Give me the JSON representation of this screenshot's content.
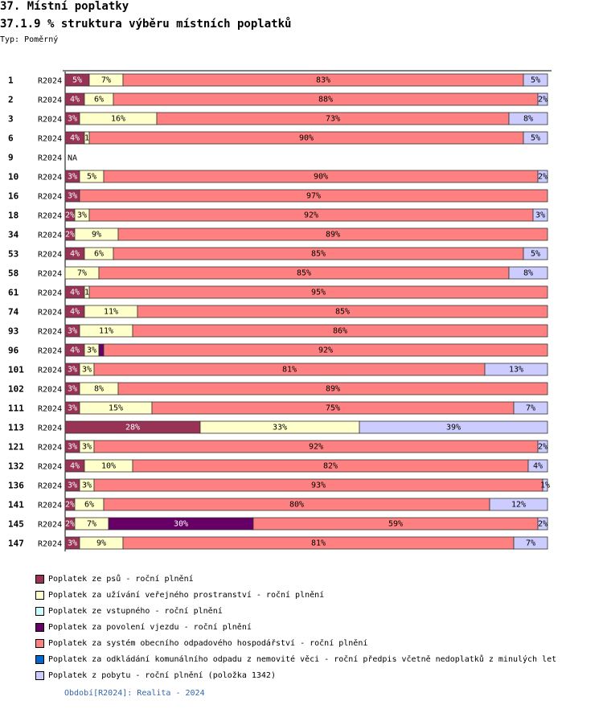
{
  "header": {
    "title": "37. Místní poplatky",
    "subtitle": "37.1.9 % struktura výběru místních poplatků",
    "typ": "Typ: Poměrný"
  },
  "colors": {
    "psu": "#993355",
    "verejne": "#ffffcc",
    "vstupne": "#ccffff",
    "vjezd": "#660066",
    "odpad": "#ff8080",
    "odpad_nemovite": "#0066cc",
    "pobyt": "#ccccff"
  },
  "chart_data": {
    "type": "bar",
    "orientation": "horizontal",
    "stacked": true,
    "normalized": true,
    "period_label": "R2024",
    "series": [
      {
        "key": "psu",
        "name": "Poplatek ze psů - roční plnění"
      },
      {
        "key": "verejne",
        "name": "Poplatek za užívání veřejného prostranství - roční plnění"
      },
      {
        "key": "vstupne",
        "name": "Poplatek ze vstupného - roční plnění"
      },
      {
        "key": "vjezd",
        "name": "Poplatek za povolení vjezdu - roční plnění"
      },
      {
        "key": "odpad",
        "name": "Poplatek za systém obecního odpadového hospodářství - roční plnění"
      },
      {
        "key": "odpad_nemovite",
        "name": "Poplatek za odkládání komunálního odpadu z nemovité věci - roční předpis včetně nedoplatků z minulých let"
      },
      {
        "key": "pobyt",
        "name": "Poplatek z pobytu - roční plnění (položka 1342)"
      }
    ],
    "rows": [
      {
        "id": "1",
        "values": [
          5,
          7,
          0,
          0,
          83,
          0,
          5
        ],
        "labels": [
          "5%",
          "7%",
          "",
          "",
          "83%",
          "",
          "5%"
        ]
      },
      {
        "id": "2",
        "values": [
          4,
          6,
          0,
          0,
          88,
          0,
          2
        ],
        "labels": [
          "4%",
          "6%",
          "",
          "",
          "88%",
          "",
          "2%"
        ]
      },
      {
        "id": "3",
        "values": [
          3,
          16,
          0,
          0,
          73,
          0,
          8
        ],
        "labels": [
          "3%",
          "16%",
          "",
          "",
          "73%",
          "",
          "8%"
        ]
      },
      {
        "id": "6",
        "values": [
          4,
          1,
          0,
          0,
          90,
          0,
          5
        ],
        "labels": [
          "4%",
          "1",
          "",
          "",
          "90%",
          "",
          "5%"
        ]
      },
      {
        "id": "9",
        "values": null,
        "na": "NA"
      },
      {
        "id": "10",
        "values": [
          3,
          5,
          0,
          0,
          90,
          0,
          2
        ],
        "labels": [
          "3%",
          "5%",
          "",
          "",
          "90%",
          "",
          "2%"
        ]
      },
      {
        "id": "16",
        "values": [
          3,
          0,
          0,
          0,
          97,
          0,
          0
        ],
        "labels": [
          "3%",
          "",
          "",
          "",
          "97%",
          "",
          ""
        ]
      },
      {
        "id": "18",
        "values": [
          2,
          3,
          0,
          0,
          92,
          0,
          3
        ],
        "labels": [
          "2%",
          "3%",
          "",
          "",
          "92%",
          "",
          "3%"
        ]
      },
      {
        "id": "34",
        "values": [
          2,
          9,
          0,
          0,
          89,
          0,
          0
        ],
        "labels": [
          "2%",
          "9%",
          "",
          "",
          "89%",
          "",
          ""
        ]
      },
      {
        "id": "53",
        "values": [
          4,
          6,
          0,
          0,
          85,
          0,
          5
        ],
        "labels": [
          "4%",
          "6%",
          "",
          "",
          "85%",
          "",
          "5%"
        ]
      },
      {
        "id": "58",
        "values": [
          0,
          7,
          0,
          0,
          85,
          0,
          8
        ],
        "labels": [
          "",
          "7%",
          "",
          "",
          "85%",
          "",
          "8%"
        ]
      },
      {
        "id": "61",
        "values": [
          4,
          1,
          0,
          0,
          95,
          0,
          0
        ],
        "labels": [
          "4%",
          "1",
          "",
          "",
          "95%",
          "",
          ""
        ]
      },
      {
        "id": "74",
        "values": [
          4,
          11,
          0,
          0,
          85,
          0,
          0
        ],
        "labels": [
          "4%",
          "11%",
          "",
          "",
          "85%",
          "",
          ""
        ]
      },
      {
        "id": "93",
        "values": [
          3,
          11,
          0,
          0,
          86,
          0,
          0
        ],
        "labels": [
          "3%",
          "11%",
          "",
          "",
          "86%",
          "",
          ""
        ]
      },
      {
        "id": "96",
        "values": [
          4,
          3,
          0,
          1,
          92,
          0,
          0
        ],
        "labels": [
          "4%",
          "3%",
          "",
          "",
          "92%",
          "",
          ""
        ]
      },
      {
        "id": "101",
        "values": [
          3,
          3,
          0,
          0,
          81,
          0,
          13
        ],
        "labels": [
          "3%",
          "3%",
          "",
          "",
          "81%",
          "",
          "13%"
        ]
      },
      {
        "id": "102",
        "values": [
          3,
          8,
          0,
          0,
          89,
          0,
          0
        ],
        "labels": [
          "3%",
          "8%",
          "",
          "",
          "89%",
          "",
          ""
        ]
      },
      {
        "id": "111",
        "values": [
          3,
          15,
          0,
          0,
          75,
          0,
          7
        ],
        "labels": [
          "3%",
          "15%",
          "",
          "",
          "75%",
          "",
          "7%"
        ]
      },
      {
        "id": "113",
        "values": [
          28,
          33,
          0,
          0,
          0,
          0,
          39
        ],
        "labels": [
          "28%",
          "33%",
          "",
          "",
          "",
          "",
          "39%"
        ]
      },
      {
        "id": "121",
        "values": [
          3,
          3,
          0,
          0,
          92,
          0,
          2
        ],
        "labels": [
          "3%",
          "3%",
          "",
          "",
          "92%",
          "",
          "2%"
        ]
      },
      {
        "id": "132",
        "values": [
          4,
          10,
          0,
          0,
          82,
          0,
          4
        ],
        "labels": [
          "4%",
          "10%",
          "",
          "",
          "82%",
          "",
          "4%"
        ]
      },
      {
        "id": "136",
        "values": [
          3,
          3,
          0,
          0,
          93,
          0,
          1
        ],
        "labels": [
          "3%",
          "3%",
          "",
          "",
          "93%",
          "",
          "1%"
        ]
      },
      {
        "id": "141",
        "values": [
          2,
          6,
          0,
          0,
          80,
          0,
          12
        ],
        "labels": [
          "2%",
          "6%",
          "",
          "",
          "80%",
          "",
          "12%"
        ]
      },
      {
        "id": "145",
        "values": [
          2,
          7,
          0,
          30,
          59,
          0,
          2
        ],
        "labels": [
          "2%",
          "7%",
          "",
          "30%",
          "59%",
          "",
          "2%"
        ]
      },
      {
        "id": "147",
        "values": [
          3,
          9,
          0,
          0,
          81,
          0,
          7
        ],
        "labels": [
          "3%",
          "9%",
          "",
          "",
          "81%",
          "",
          "7%"
        ]
      }
    ]
  },
  "footer": "Období[R2024]: Realita - 2024"
}
